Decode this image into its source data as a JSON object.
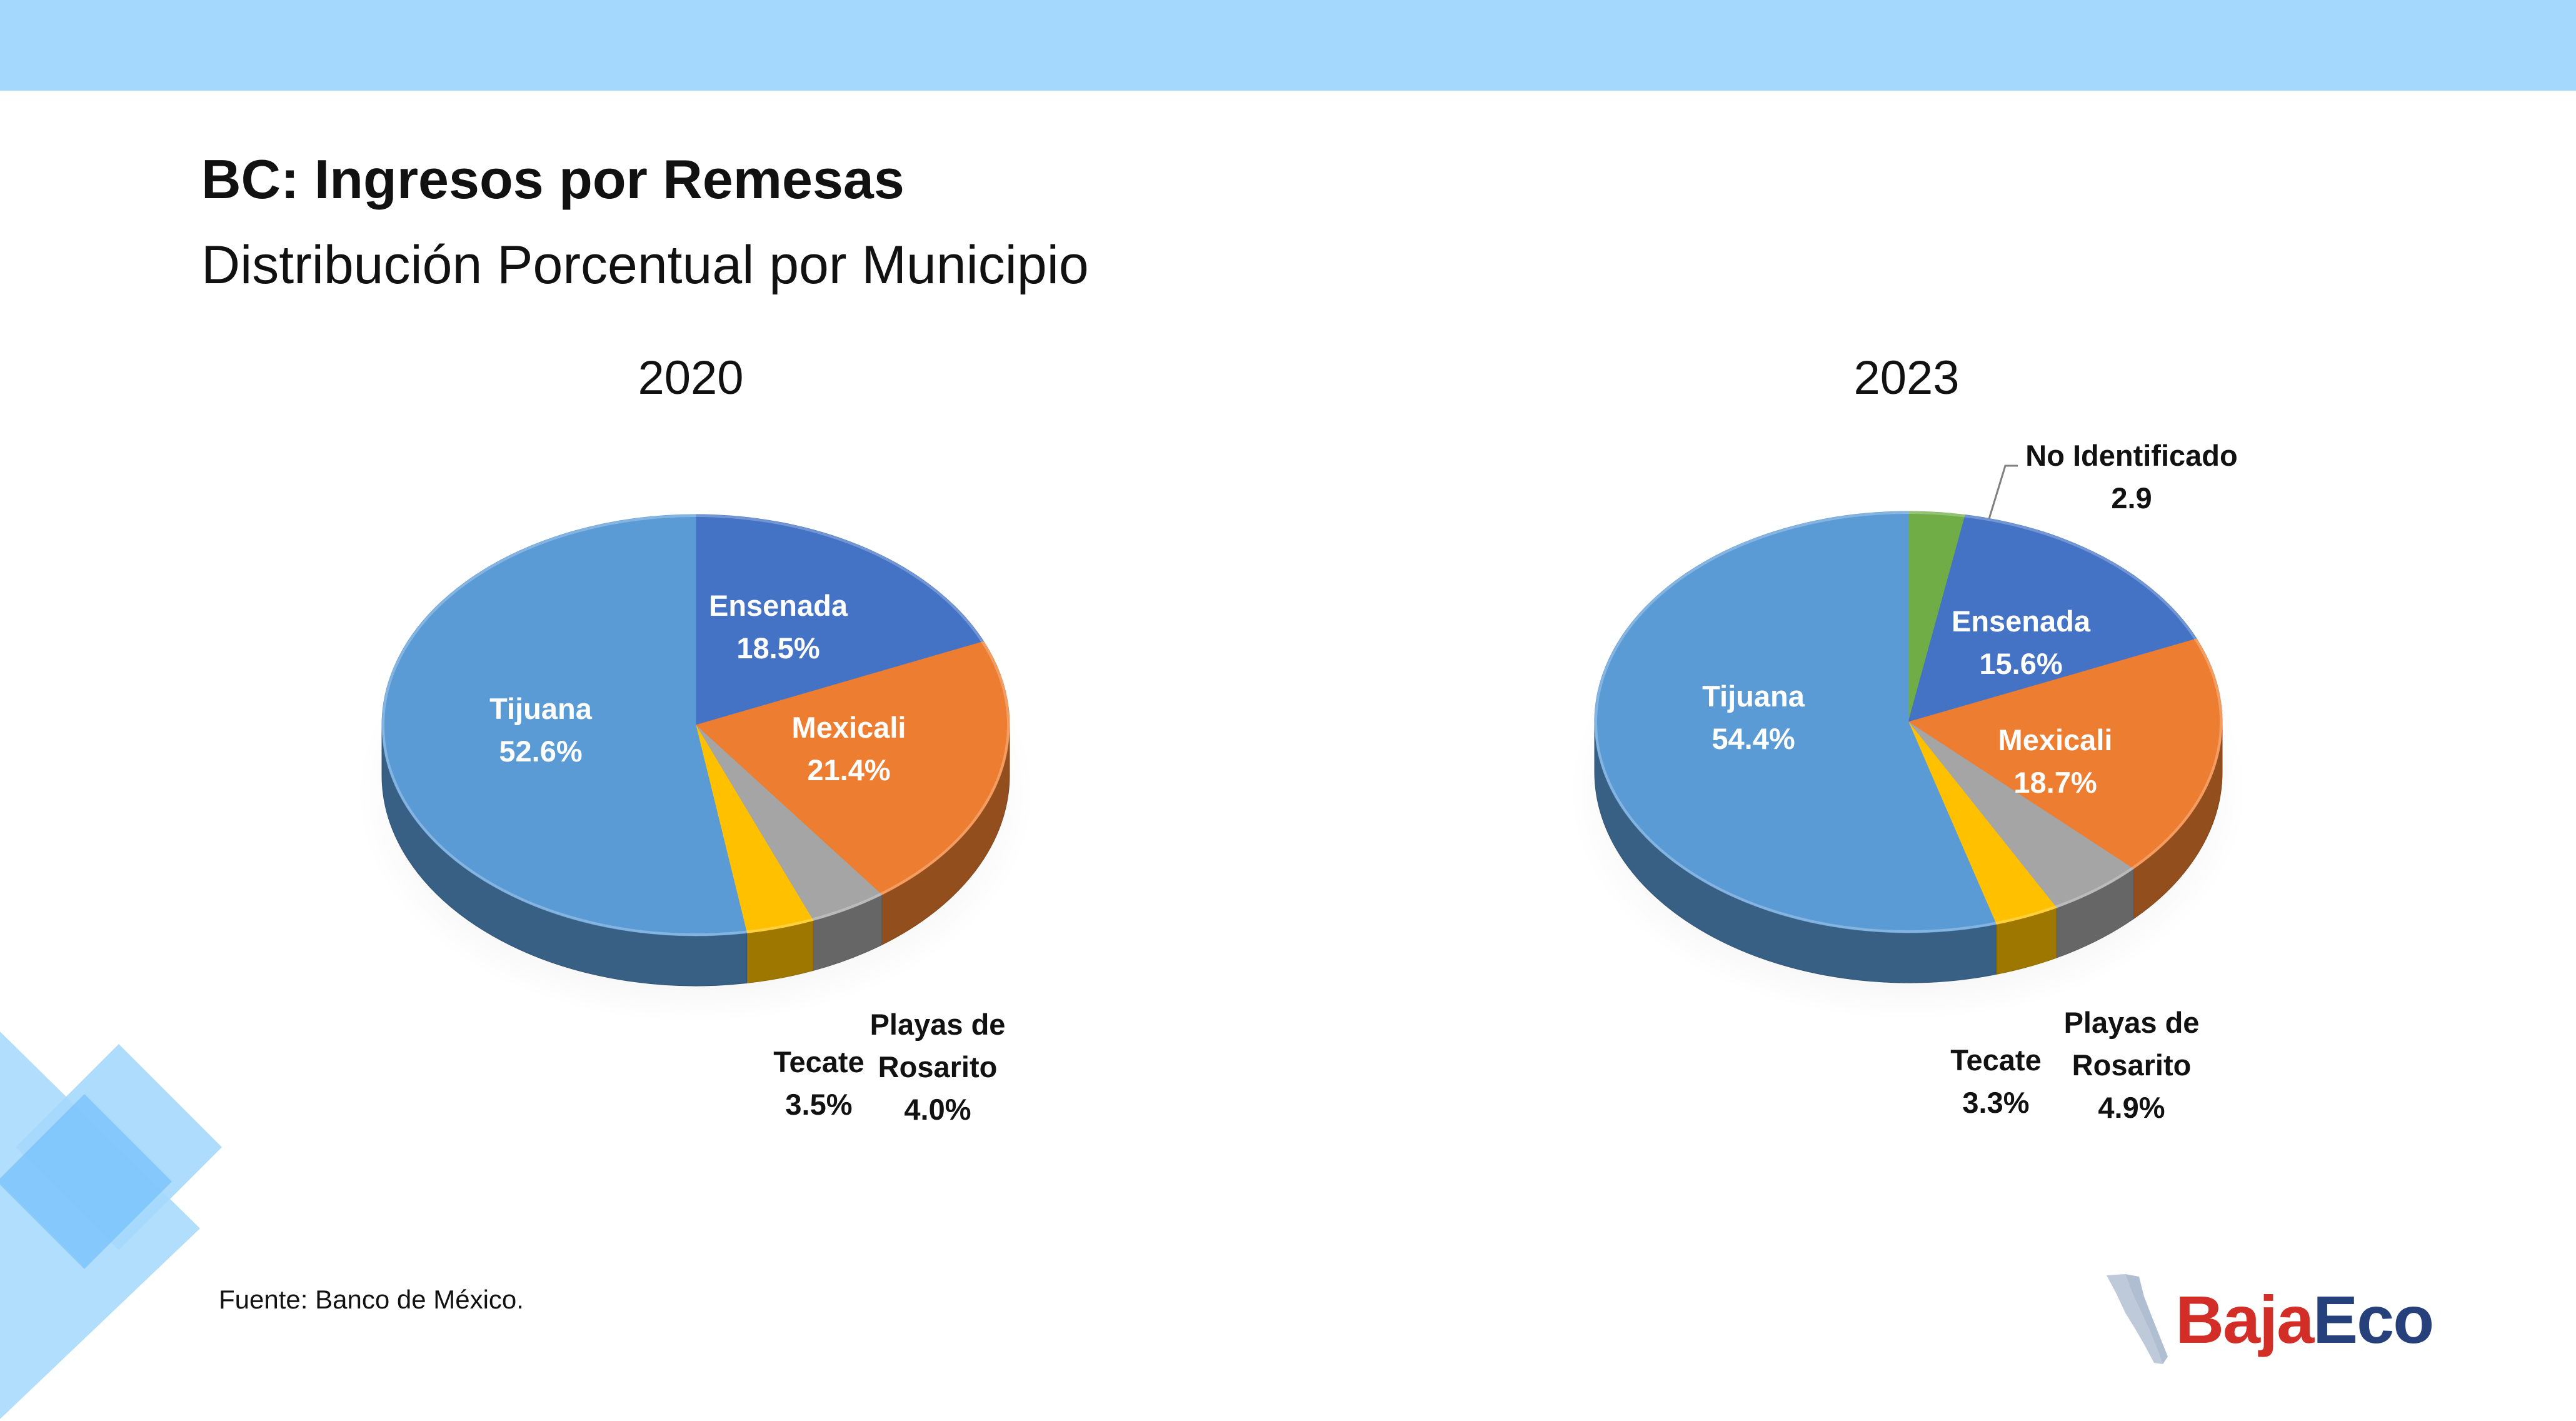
{
  "header": {
    "title": "BC: Ingresos por Remesas",
    "subtitle": "Distribución Porcentual por Municipio"
  },
  "footer": {
    "source": "Fuente: Banco de México.",
    "logo_part1": "Baja",
    "logo_part2": "Eco"
  },
  "colors": {
    "band": "#a5d8fd",
    "tijuana": "#5b9bd5",
    "ensenada": "#4472c4",
    "mexicali": "#ed7d31",
    "playas": "#a5a5a5",
    "tecate": "#ffc000",
    "no_identificado": "#70ad47"
  },
  "chart_data": [
    {
      "type": "pie",
      "title": "2020",
      "slices": [
        {
          "name": "Ensenada",
          "value": 18.5,
          "label_lines": [
            "Ensenada",
            "18.5%"
          ],
          "color": "#4472c4"
        },
        {
          "name": "Mexicali",
          "value": 21.4,
          "label_lines": [
            "Mexicali",
            "21.4%"
          ],
          "color": "#ed7d31"
        },
        {
          "name": "Playas de Rosarito",
          "value": 4.0,
          "label_lines": [
            "Playas de",
            "Rosarito",
            "4.0%"
          ],
          "color": "#a5a5a5"
        },
        {
          "name": "Tecate",
          "value": 3.5,
          "label_lines": [
            "Tecate",
            "3.5%"
          ],
          "color": "#ffc000"
        },
        {
          "name": "Tijuana",
          "value": 52.6,
          "label_lines": [
            "Tijuana",
            "52.6%"
          ],
          "color": "#5b9bd5"
        }
      ]
    },
    {
      "type": "pie",
      "title": "2023",
      "slices": [
        {
          "name": "No Identificado",
          "value": 2.9,
          "label_lines": [
            "No Identificado",
            "2.9"
          ],
          "color": "#70ad47"
        },
        {
          "name": "Ensenada",
          "value": 15.6,
          "label_lines": [
            "Ensenada",
            "15.6%"
          ],
          "color": "#4472c4"
        },
        {
          "name": "Mexicali",
          "value": 18.7,
          "label_lines": [
            "Mexicali",
            "18.7%"
          ],
          "color": "#ed7d31"
        },
        {
          "name": "Playas de Rosarito",
          "value": 4.9,
          "label_lines": [
            "Playas de",
            "Rosarito",
            "4.9%"
          ],
          "color": "#a5a5a5"
        },
        {
          "name": "Tecate",
          "value": 3.3,
          "label_lines": [
            "Tecate",
            "3.3%"
          ],
          "color": "#ffc000"
        },
        {
          "name": "Tijuana",
          "value": 54.4,
          "label_lines": [
            "Tijuana",
            "54.4%"
          ],
          "color": "#5b9bd5"
        }
      ]
    }
  ]
}
